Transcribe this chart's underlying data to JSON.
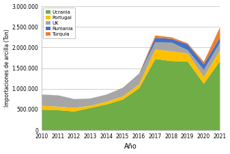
{
  "years": [
    2010,
    2011,
    2012,
    2013,
    2014,
    2015,
    2016,
    2017,
    2018,
    2019,
    2020,
    2021
  ],
  "Ucrania": [
    500000,
    490000,
    460000,
    545000,
    630000,
    750000,
    1020000,
    1730000,
    1680000,
    1670000,
    1130000,
    1680000
  ],
  "Portugal": [
    95000,
    85000,
    85000,
    55000,
    65000,
    75000,
    95000,
    230000,
    235000,
    195000,
    165000,
    260000
  ],
  "UK": [
    270000,
    270000,
    210000,
    170000,
    170000,
    200000,
    235000,
    175000,
    215000,
    80000,
    170000,
    190000
  ],
  "Rumania": [
    2000,
    2000,
    2000,
    2000,
    2000,
    5000,
    15000,
    110000,
    90000,
    140000,
    140000,
    120000
  ],
  "Turquia": [
    2000,
    2000,
    2000,
    2000,
    2000,
    5000,
    10000,
    55000,
    35000,
    25000,
    55000,
    250000
  ],
  "colors": {
    "Ucrania": "#70ad47",
    "Portugal": "#ffc000",
    "UK": "#a6a6a6",
    "Rumania": "#4472c4",
    "Turquia": "#ed7d31"
  },
  "ylabel": "Importaciones de arcilla (Ton)",
  "xlabel": "Año",
  "ylim": [
    0,
    3000000
  ],
  "yticks": [
    0,
    500000,
    1000000,
    1500000,
    2000000,
    2500000,
    3000000
  ],
  "background_color": "#ffffff",
  "fig_background": "#ffffff"
}
